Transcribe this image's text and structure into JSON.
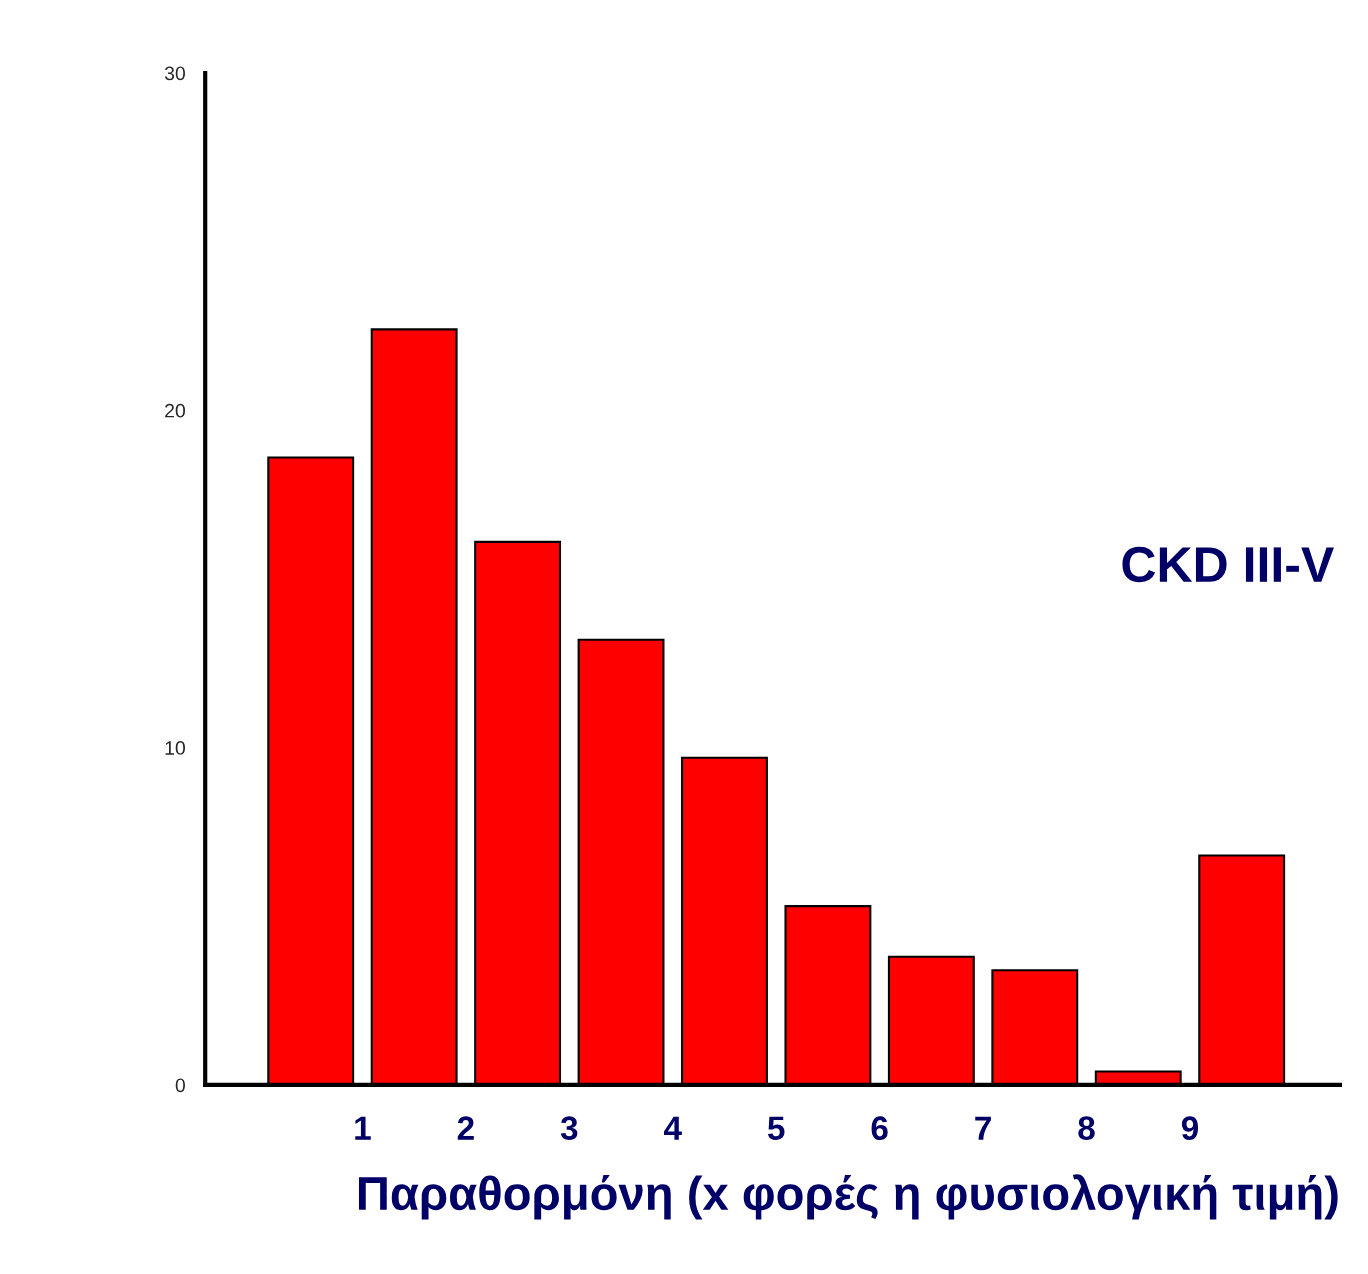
{
  "chart_data": {
    "type": "histogram",
    "xlabel": "Παραθορμόνη (x φορές η φυσιολογική τιμή)",
    "annotations": [
      "CKD III-V"
    ],
    "bins": [
      0,
      1,
      2,
      3,
      4,
      5,
      6,
      7,
      8,
      9,
      10
    ],
    "values": [
      18.6,
      22.4,
      16.1,
      13.2,
      9.7,
      5.3,
      3.8,
      3.4,
      0.4,
      6.8
    ],
    "color": "#ff0000",
    "xlim": [
      -0.52,
      10.45
    ],
    "xticks": [
      1,
      2,
      3,
      4,
      5,
      6,
      7,
      8,
      9
    ],
    "ylim": [
      0,
      30
    ],
    "yticks": [
      0,
      10,
      20,
      30
    ],
    "grid": false,
    "legend": false
  }
}
